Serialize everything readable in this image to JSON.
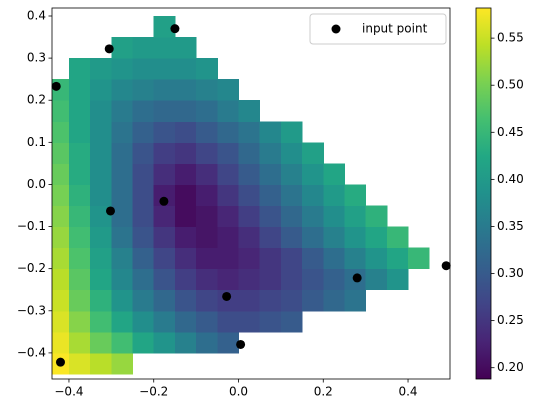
{
  "chart_data": {
    "type": "heatmap",
    "cmap": "viridis",
    "xbins": [
      -0.45,
      -0.4,
      -0.35,
      -0.3,
      -0.25,
      -0.2,
      -0.15,
      -0.1,
      -0.05,
      0.0,
      0.05,
      0.1,
      0.15,
      0.2,
      0.25,
      0.3,
      0.35,
      0.4,
      0.45,
      0.5
    ],
    "ybins": [
      -0.45,
      -0.4,
      -0.35,
      -0.3,
      -0.25,
      -0.2,
      -0.15,
      -0.1,
      -0.05,
      0.0,
      0.05,
      0.1,
      0.15,
      0.2,
      0.25,
      0.3,
      0.35,
      0.4
    ],
    "z": [
      [
        0.58,
        0.56,
        0.54,
        0.52,
        null,
        null,
        null,
        null,
        null,
        null,
        null,
        null,
        null,
        null,
        null,
        null,
        null,
        null,
        null
      ],
      [
        0.57,
        0.53,
        0.49,
        0.46,
        0.42,
        0.39,
        0.36,
        0.33,
        0.31,
        null,
        null,
        null,
        null,
        null,
        null,
        null,
        null,
        null,
        null
      ],
      [
        0.56,
        0.51,
        0.46,
        0.42,
        0.38,
        0.35,
        0.32,
        0.3,
        0.28,
        0.28,
        0.29,
        0.3,
        null,
        null,
        null,
        null,
        null,
        null,
        null
      ],
      [
        0.55,
        0.49,
        0.44,
        0.39,
        0.35,
        0.32,
        0.29,
        0.27,
        0.26,
        0.26,
        0.27,
        0.28,
        0.3,
        0.32,
        0.34,
        null,
        null,
        null,
        null
      ],
      [
        0.54,
        0.48,
        0.42,
        0.37,
        0.33,
        0.29,
        0.26,
        0.24,
        0.23,
        0.24,
        0.25,
        0.27,
        0.29,
        0.31,
        0.33,
        0.36,
        0.39,
        null,
        null
      ],
      [
        0.53,
        0.47,
        0.41,
        0.36,
        0.31,
        0.27,
        0.24,
        0.22,
        0.22,
        0.23,
        0.25,
        0.27,
        0.3,
        0.33,
        0.36,
        0.39,
        0.42,
        0.45,
        null
      ],
      [
        0.52,
        0.46,
        0.4,
        0.34,
        0.29,
        0.25,
        0.22,
        0.21,
        0.22,
        0.24,
        0.27,
        0.3,
        0.33,
        0.36,
        0.39,
        0.42,
        0.45,
        null,
        null
      ],
      [
        0.51,
        0.45,
        0.39,
        0.33,
        0.28,
        0.23,
        0.2,
        0.21,
        0.23,
        0.26,
        0.29,
        0.32,
        0.35,
        0.38,
        0.41,
        0.44,
        null,
        null,
        null
      ],
      [
        0.5,
        0.44,
        0.38,
        0.33,
        0.28,
        0.22,
        0.2,
        0.22,
        0.25,
        0.28,
        0.31,
        0.34,
        0.37,
        0.4,
        0.43,
        null,
        null,
        null,
        null
      ],
      [
        0.49,
        0.43,
        0.38,
        0.33,
        0.28,
        0.24,
        0.22,
        0.24,
        0.27,
        0.3,
        0.33,
        0.36,
        0.39,
        0.42,
        null,
        null,
        null,
        null,
        null
      ],
      [
        0.48,
        0.43,
        0.38,
        0.33,
        0.29,
        0.26,
        0.25,
        0.27,
        0.29,
        0.32,
        0.35,
        0.38,
        0.41,
        null,
        null,
        null,
        null,
        null,
        null
      ],
      [
        0.47,
        0.42,
        0.38,
        0.34,
        0.31,
        0.29,
        0.28,
        0.3,
        0.32,
        0.34,
        0.37,
        0.4,
        null,
        null,
        null,
        null,
        null,
        null,
        null
      ],
      [
        0.46,
        0.42,
        0.38,
        0.35,
        0.33,
        0.32,
        0.32,
        0.33,
        0.35,
        0.37,
        null,
        null,
        null,
        null,
        null,
        null,
        null,
        null,
        null
      ],
      [
        0.45,
        0.42,
        0.39,
        0.37,
        0.36,
        0.35,
        0.35,
        0.36,
        0.37,
        null,
        null,
        null,
        null,
        null,
        null,
        null,
        null,
        null,
        null
      ],
      [
        null,
        0.42,
        0.4,
        0.39,
        0.38,
        0.38,
        0.38,
        0.39,
        null,
        null,
        null,
        null,
        null,
        null,
        null,
        null,
        null,
        null,
        null
      ],
      [
        null,
        null,
        null,
        0.41,
        0.4,
        0.4,
        0.4,
        null,
        null,
        null,
        null,
        null,
        null,
        null,
        null,
        null,
        null,
        null,
        null
      ],
      [
        null,
        null,
        null,
        null,
        null,
        0.41,
        null,
        null,
        null,
        null,
        null,
        null,
        null,
        null,
        null,
        null,
        null,
        null,
        null
      ]
    ],
    "clim": [
      0.188,
      0.582
    ],
    "cticks": [
      {
        "value": 0.2,
        "label": "0.20"
      },
      0.25,
      {
        "value": 0.3,
        "label": "0.30"
      },
      0.35,
      {
        "value": 0.4,
        "label": "0.40"
      },
      0.45,
      {
        "value": 0.5,
        "label": "0.50"
      },
      0.55
    ],
    "xlim": [
      -0.44,
      0.499
    ],
    "ylim": [
      -0.462,
      0.419
    ],
    "xticks": [
      {
        "value": -0.4,
        "label": "−0.4"
      },
      {
        "value": -0.2,
        "label": "−0.2"
      },
      {
        "value": 0.0,
        "label": "0.0"
      },
      0.2,
      0.4
    ],
    "yticks": [
      {
        "value": -0.4,
        "label": "−0.4"
      },
      {
        "value": -0.3,
        "label": "−0.3"
      },
      {
        "value": -0.2,
        "label": "−0.2"
      },
      {
        "value": -0.1,
        "label": "−0.1"
      },
      {
        "value": 0.0,
        "label": "0.0"
      },
      0.1,
      0.2,
      0.3,
      0.4
    ],
    "legend": "upper right",
    "series": [
      {
        "name": "input point",
        "type": "scatter",
        "color": "#000000",
        "x": [
          -0.43,
          -0.305,
          -0.15,
          -0.176,
          -0.302,
          -0.028,
          0.005,
          0.28,
          0.49,
          -0.42
        ],
        "y": [
          0.233,
          0.322,
          0.37,
          -0.04,
          -0.063,
          -0.266,
          -0.38,
          -0.222,
          -0.193,
          -0.422
        ]
      }
    ]
  }
}
